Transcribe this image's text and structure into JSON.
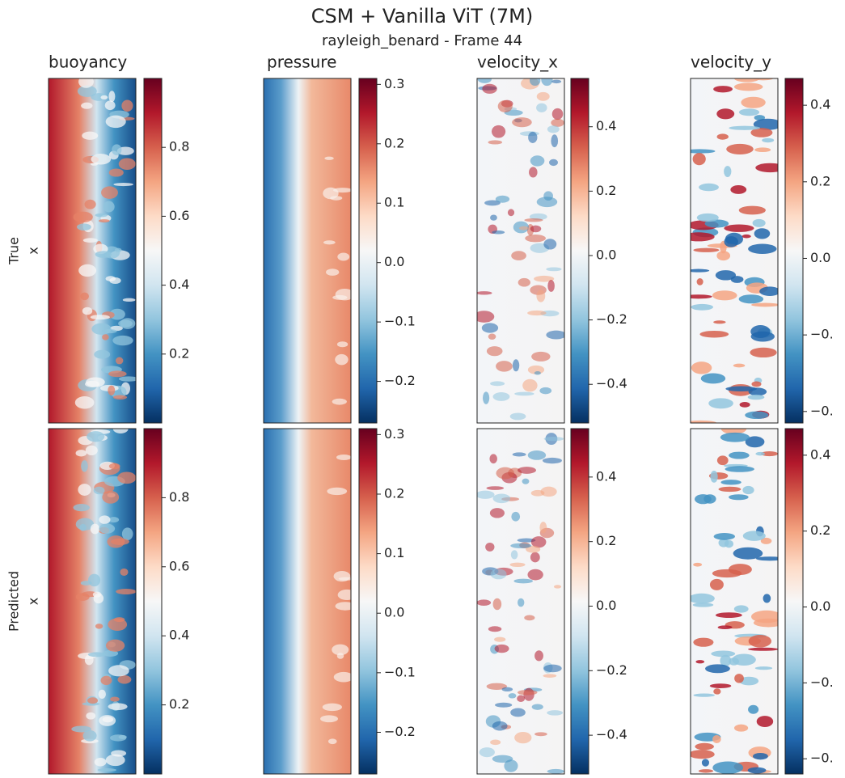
{
  "title": "CSM + Vanilla ViT (7M)",
  "subtitle": "rayleigh_benard - Frame 44",
  "columns": [
    "buoyancy",
    "pressure",
    "velocity_x",
    "velocity_y"
  ],
  "rows": [
    {
      "label": [
        "True",
        "x"
      ],
      "colorbars": [
        {
          "clim": [
            0,
            1
          ],
          "ticks": [
            0.2,
            0.4,
            0.6,
            0.8
          ]
        },
        {
          "clim": [
            -0.27,
            0.31
          ],
          "ticks": [
            {
              "value": -0.2,
              "label": "−0.2"
            },
            {
              "value": -0.1,
              "label": "−0.1"
            },
            {
              "value": 0,
              "label": "0.0"
            },
            0.1,
            0.2,
            0.3
          ]
        },
        {
          "clim": [
            -0.52,
            0.55
          ],
          "ticks": [
            {
              "value": -0.4,
              "label": "−0.4"
            },
            {
              "value": -0.2,
              "label": "−0.2"
            },
            {
              "value": 0,
              "label": "0.0"
            },
            0.2,
            0.4
          ]
        },
        {
          "clim": [
            -0.43,
            0.47
          ],
          "ticks": [
            {
              "value": -0.4,
              "label": "−0."
            },
            {
              "value": -0.2,
              "label": "−0."
            },
            {
              "value": 0,
              "label": "0.0"
            },
            0.2,
            0.4
          ]
        }
      ]
    },
    {
      "label": [
        "Predicted",
        "x"
      ],
      "colorbars": [
        {
          "clim": [
            0,
            1
          ],
          "ticks": [
            0.2,
            0.4,
            0.6,
            0.8
          ]
        },
        {
          "clim": [
            -0.27,
            0.31
          ],
          "ticks": [
            {
              "value": -0.2,
              "label": "−0.2"
            },
            {
              "value": -0.1,
              "label": "−0.1"
            },
            {
              "value": 0,
              "label": "0.0"
            },
            0.1,
            0.2,
            0.3
          ]
        },
        {
          "clim": [
            -0.52,
            0.55
          ],
          "ticks": [
            {
              "value": -0.4,
              "label": "−0.4"
            },
            {
              "value": -0.2,
              "label": "−0.2"
            },
            {
              "value": 0,
              "label": "0.0"
            },
            0.2,
            0.4
          ]
        },
        {
          "clim": [
            -0.44,
            0.47
          ],
          "ticks": [
            {
              "value": -0.4,
              "label": "−0."
            },
            {
              "value": -0.2,
              "label": "−0."
            },
            {
              "value": 0,
              "label": "0.0"
            },
            0.2,
            0.4
          ]
        }
      ]
    }
  ]
}
